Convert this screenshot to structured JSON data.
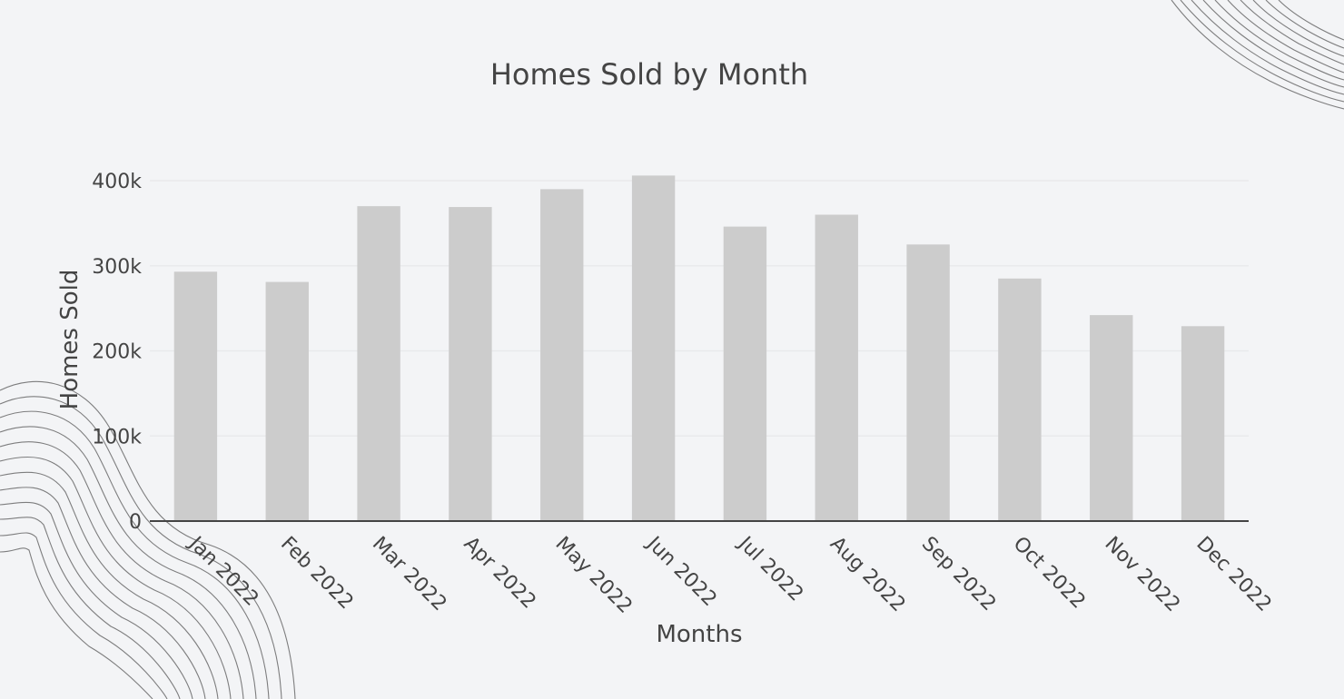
{
  "chart_data": {
    "type": "bar",
    "title": "Homes Sold by Month",
    "xlabel": "Months",
    "ylabel": "Homes Sold",
    "categories": [
      "Jan 2022",
      "Feb 2022",
      "Mar 2022",
      "Apr 2022",
      "May 2022",
      "Jun 2022",
      "Jul 2022",
      "Aug 2022",
      "Sep 2022",
      "Oct 2022",
      "Nov 2022",
      "Dec 2022"
    ],
    "values": [
      293000,
      281000,
      370000,
      369000,
      390000,
      406000,
      346000,
      360000,
      325000,
      285000,
      242000,
      229000
    ],
    "yticks": [
      0,
      100000,
      200000,
      300000,
      400000
    ],
    "ytick_labels": [
      "0",
      "100k",
      "200k",
      "300k",
      "400k"
    ],
    "ylim": [
      0,
      400000
    ],
    "grid": true,
    "legend": "none",
    "bar_color": "#cccccc",
    "axis_color": "#444444",
    "gridline_color": "#e9eaec",
    "background_color": "#f3f4f6"
  }
}
